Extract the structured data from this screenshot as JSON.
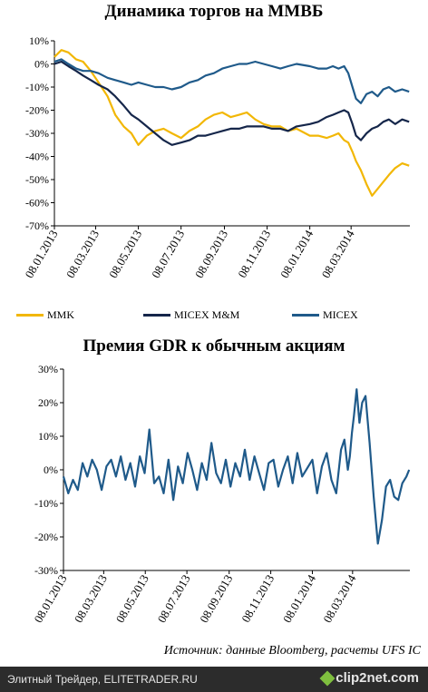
{
  "source_note": "Источник: данные Bloomberg, расчеты UFS IC",
  "footer": {
    "site": "Элитный Трейдер, ELITETRADER.RU",
    "logo": "clip2net.com"
  },
  "colors": {
    "mmk": "#f2b705",
    "micex_mm": "#15264a",
    "micex": "#1f5a8a",
    "premium": "#1f5a8a",
    "axis": "#000000"
  },
  "chart_data": [
    {
      "type": "line",
      "title": "Динамика торгов на ММВБ",
      "ylim": [
        -70,
        10
      ],
      "yticks": [
        10,
        0,
        -10,
        -20,
        -30,
        -40,
        -50,
        -60,
        -70
      ],
      "ytick_labels": [
        "10%",
        "0%",
        "-10%",
        "-20%",
        "-30%",
        "-40%",
        "-50%",
        "-60%",
        "-70%"
      ],
      "xlim": [
        "2013-01-08",
        "2014-05-31"
      ],
      "xticks": [
        "2013-01-08",
        "2013-03-08",
        "2013-05-08",
        "2013-07-08",
        "2013-09-08",
        "2013-11-08",
        "2014-01-08",
        "2014-03-08"
      ],
      "xtick_labels": [
        "08.01.2013",
        "08.03.2013",
        "08.05.2013",
        "08.07.2013",
        "08.09.2013",
        "08.11.2013",
        "08.01.2014",
        "08.03.2014"
      ],
      "legend_position": "bottom",
      "series": [
        {
          "name": "MMK",
          "color": "#f2b705",
          "x": [
            "2013-01-08",
            "2013-01-18",
            "2013-01-28",
            "2013-02-08",
            "2013-02-18",
            "2013-03-01",
            "2013-03-12",
            "2013-03-25",
            "2013-04-05",
            "2013-04-17",
            "2013-04-28",
            "2013-05-08",
            "2013-05-20",
            "2013-06-01",
            "2013-06-13",
            "2013-06-25",
            "2013-07-08",
            "2013-07-20",
            "2013-08-01",
            "2013-08-12",
            "2013-08-24",
            "2013-09-05",
            "2013-09-17",
            "2013-09-29",
            "2013-10-10",
            "2013-10-22",
            "2013-11-03",
            "2013-11-15",
            "2013-11-27",
            "2013-12-08",
            "2013-12-20",
            "2014-01-08",
            "2014-01-20",
            "2014-02-01",
            "2014-02-10",
            "2014-02-18",
            "2014-02-26",
            "2014-03-04",
            "2014-03-10",
            "2014-03-15",
            "2014-03-22",
            "2014-03-30",
            "2014-04-07",
            "2014-04-15",
            "2014-04-23",
            "2014-05-01",
            "2014-05-10",
            "2014-05-20",
            "2014-05-30"
          ],
          "values": [
            3,
            6,
            5,
            2,
            1,
            -3,
            -8,
            -14,
            -22,
            -27,
            -30,
            -35,
            -31,
            -29,
            -28,
            -30,
            -32,
            -29,
            -27,
            -24,
            -22,
            -21,
            -23,
            -22,
            -21,
            -24,
            -26,
            -27,
            -27,
            -29,
            -28,
            -31,
            -31,
            -32,
            -31,
            -30,
            -33,
            -34,
            -38,
            -42,
            -46,
            -52,
            -57,
            -54,
            -51,
            -48,
            -45,
            -43,
            -44
          ]
        },
        {
          "name": "MICEX M&M",
          "color": "#15264a",
          "x": [
            "2013-01-08",
            "2013-01-18",
            "2013-01-28",
            "2013-02-08",
            "2013-02-18",
            "2013-03-01",
            "2013-03-12",
            "2013-03-25",
            "2013-04-05",
            "2013-04-17",
            "2013-04-28",
            "2013-05-08",
            "2013-05-20",
            "2013-06-01",
            "2013-06-13",
            "2013-06-25",
            "2013-07-08",
            "2013-07-20",
            "2013-08-01",
            "2013-08-12",
            "2013-08-24",
            "2013-09-05",
            "2013-09-17",
            "2013-09-29",
            "2013-10-10",
            "2013-10-22",
            "2013-11-03",
            "2013-11-15",
            "2013-11-27",
            "2013-12-08",
            "2013-12-20",
            "2014-01-08",
            "2014-01-20",
            "2014-02-01",
            "2014-02-10",
            "2014-02-18",
            "2014-02-26",
            "2014-03-04",
            "2014-03-10",
            "2014-03-15",
            "2014-03-22",
            "2014-03-30",
            "2014-04-07",
            "2014-04-15",
            "2014-04-23",
            "2014-05-01",
            "2014-05-10",
            "2014-05-20",
            "2014-05-30"
          ],
          "values": [
            0,
            1,
            -1,
            -3,
            -5,
            -7,
            -9,
            -11,
            -14,
            -18,
            -22,
            -24,
            -27,
            -30,
            -33,
            -35,
            -34,
            -33,
            -31,
            -31,
            -30,
            -29,
            -28,
            -28,
            -27,
            -27,
            -27,
            -28,
            -28,
            -29,
            -27,
            -26,
            -25,
            -23,
            -22,
            -21,
            -20,
            -21,
            -26,
            -31,
            -33,
            -30,
            -28,
            -27,
            -25,
            -24,
            -26,
            -24,
            -25
          ]
        },
        {
          "name": "MICEX",
          "color": "#1f5a8a",
          "x": [
            "2013-01-08",
            "2013-01-18",
            "2013-01-28",
            "2013-02-08",
            "2013-02-18",
            "2013-03-01",
            "2013-03-12",
            "2013-03-25",
            "2013-04-05",
            "2013-04-17",
            "2013-04-28",
            "2013-05-08",
            "2013-05-20",
            "2013-06-01",
            "2013-06-13",
            "2013-06-25",
            "2013-07-08",
            "2013-07-20",
            "2013-08-01",
            "2013-08-12",
            "2013-08-24",
            "2013-09-05",
            "2013-09-17",
            "2013-09-29",
            "2013-10-10",
            "2013-10-22",
            "2013-11-03",
            "2013-11-15",
            "2013-11-27",
            "2013-12-08",
            "2013-12-20",
            "2014-01-08",
            "2014-01-20",
            "2014-02-01",
            "2014-02-10",
            "2014-02-18",
            "2014-02-26",
            "2014-03-04",
            "2014-03-10",
            "2014-03-15",
            "2014-03-22",
            "2014-03-30",
            "2014-04-07",
            "2014-04-15",
            "2014-04-23",
            "2014-05-01",
            "2014-05-10",
            "2014-05-20",
            "2014-05-30"
          ],
          "values": [
            1,
            2,
            0,
            -2,
            -3,
            -3,
            -4,
            -6,
            -7,
            -8,
            -9,
            -8,
            -9,
            -10,
            -10,
            -11,
            -10,
            -8,
            -7,
            -5,
            -4,
            -2,
            -1,
            0,
            0,
            1,
            0,
            -1,
            -2,
            -1,
            0,
            -1,
            -2,
            -2,
            -1,
            -2,
            -1,
            -4,
            -10,
            -15,
            -17,
            -13,
            -12,
            -14,
            -11,
            -10,
            -12,
            -11,
            -12
          ]
        }
      ]
    },
    {
      "type": "line",
      "title": "Премия GDR к обычным акциям",
      "ylim": [
        -30,
        30
      ],
      "yticks": [
        30,
        20,
        10,
        0,
        -10,
        -20,
        -30
      ],
      "ytick_labels": [
        "30%",
        "20%",
        "10%",
        "0%",
        "-10%",
        "-20%",
        "-30%"
      ],
      "xlim": [
        "2013-01-08",
        "2014-05-31"
      ],
      "xticks": [
        "2013-01-08",
        "2013-03-08",
        "2013-05-08",
        "2013-07-08",
        "2013-09-08",
        "2013-11-08",
        "2014-01-08",
        "2014-03-08"
      ],
      "xtick_labels": [
        "08.01.2013",
        "08.03.2013",
        "08.05.2013",
        "08.07.2013",
        "08.09.2013",
        "08.11.2013",
        "08.01.2014",
        "08.03.2014"
      ],
      "series": [
        {
          "color": "#1f5a8a",
          "x": [
            "2013-01-08",
            "2013-01-15",
            "2013-01-22",
            "2013-01-29",
            "2013-02-05",
            "2013-02-12",
            "2013-02-19",
            "2013-02-26",
            "2013-03-05",
            "2013-03-12",
            "2013-03-19",
            "2013-03-26",
            "2013-04-02",
            "2013-04-09",
            "2013-04-16",
            "2013-04-23",
            "2013-04-30",
            "2013-05-07",
            "2013-05-14",
            "2013-05-21",
            "2013-05-28",
            "2013-06-04",
            "2013-06-11",
            "2013-06-18",
            "2013-06-25",
            "2013-07-02",
            "2013-07-09",
            "2013-07-16",
            "2013-07-23",
            "2013-07-30",
            "2013-08-06",
            "2013-08-13",
            "2013-08-20",
            "2013-08-27",
            "2013-09-03",
            "2013-09-10",
            "2013-09-17",
            "2013-09-24",
            "2013-10-01",
            "2013-10-08",
            "2013-10-15",
            "2013-10-22",
            "2013-10-29",
            "2013-11-05",
            "2013-11-12",
            "2013-11-19",
            "2013-11-26",
            "2013-12-03",
            "2013-12-10",
            "2013-12-17",
            "2013-12-24",
            "2014-01-08",
            "2014-01-15",
            "2014-01-22",
            "2014-01-29",
            "2014-02-05",
            "2014-02-12",
            "2014-02-19",
            "2014-02-24",
            "2014-03-01",
            "2014-03-04",
            "2014-03-07",
            "2014-03-10",
            "2014-03-14",
            "2014-03-18",
            "2014-03-22",
            "2014-03-27",
            "2014-04-02",
            "2014-04-08",
            "2014-04-14",
            "2014-04-20",
            "2014-04-26",
            "2014-05-02",
            "2014-05-08",
            "2014-05-14",
            "2014-05-20",
            "2014-05-26",
            "2014-05-30"
          ],
          "values": [
            -2,
            -7,
            -3,
            -6,
            2,
            -2,
            3,
            0,
            -6,
            1,
            3,
            -2,
            4,
            -3,
            2,
            -5,
            4,
            -1,
            12,
            -4,
            -2,
            -7,
            3,
            -9,
            1,
            -4,
            5,
            0,
            -6,
            2,
            -3,
            8,
            -1,
            -4,
            3,
            -5,
            2,
            -2,
            6,
            -3,
            4,
            -1,
            -6,
            2,
            3,
            -5,
            0,
            4,
            -4,
            5,
            -2,
            3,
            -7,
            1,
            5,
            -3,
            -7,
            6,
            9,
            0,
            4,
            11,
            16,
            24,
            14,
            20,
            22,
            8,
            -8,
            -22,
            -15,
            -5,
            -3,
            -8,
            -9,
            -4,
            -2,
            0
          ]
        }
      ]
    }
  ]
}
